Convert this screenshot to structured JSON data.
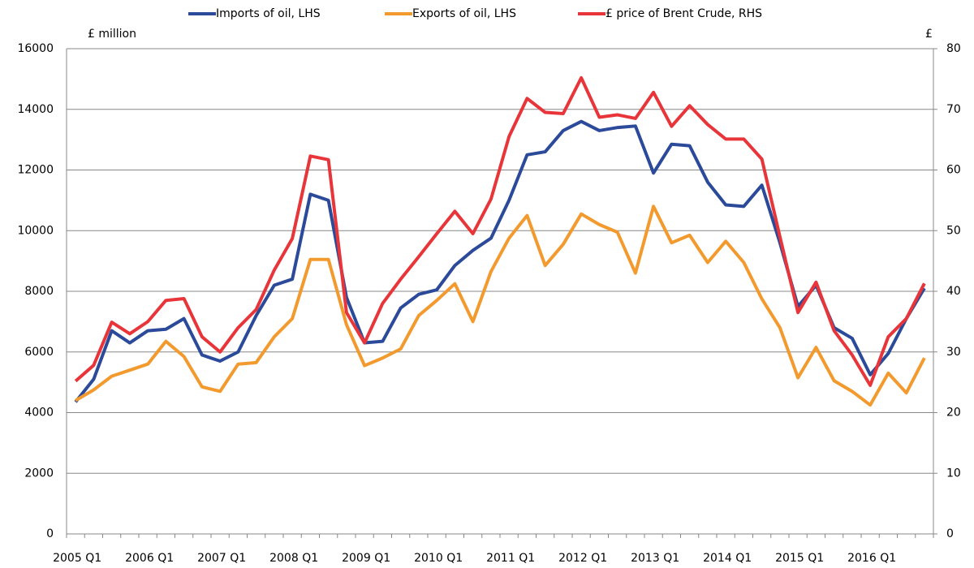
{
  "chart_data": {
    "type": "line",
    "y_unit_label": "£ million",
    "y2_unit_label": "£",
    "categories": [
      "2005 Q1",
      null,
      null,
      null,
      "2006 Q1",
      null,
      null,
      null,
      "2007 Q1",
      null,
      null,
      null,
      "2008 Q1",
      null,
      null,
      null,
      "2009 Q1",
      null,
      null,
      null,
      "2010 Q1",
      null,
      null,
      null,
      "2011 Q1",
      null,
      null,
      null,
      "2012 Q1",
      null,
      null,
      null,
      "2013 Q1",
      null,
      null,
      null,
      "2014 Q1",
      null,
      null,
      null,
      "2015 Q1",
      null,
      null,
      null,
      "2016 Q1",
      null,
      null,
      null
    ],
    "series": [
      {
        "name": "Imports of oil, LHS",
        "color": "#2b4a9a",
        "values": [
          4350,
          5100,
          6700,
          6300,
          6700,
          6750,
          7100,
          5900,
          5700,
          6000,
          7200,
          8200,
          8400,
          11200,
          11000,
          7800,
          6300,
          6350,
          7450,
          7900,
          8050,
          8850,
          9350,
          9750,
          11000,
          12500,
          12600,
          13300,
          13600,
          13300,
          13400,
          13450,
          11900,
          12850,
          12800,
          11600,
          10850,
          10800,
          11500,
          9600,
          7500,
          8200,
          6800,
          6450,
          5250,
          5950,
          7100,
          8100
        ]
      },
      {
        "name": "Exports of oil, LHS",
        "color": "#f39a2e",
        "values": [
          4400,
          4750,
          5200,
          5400,
          5600,
          6350,
          5850,
          4850,
          4700,
          5600,
          5650,
          6500,
          7100,
          9050,
          9050,
          6900,
          5550,
          5800,
          6100,
          7200,
          7700,
          8250,
          7000,
          8650,
          9750,
          10500,
          8850,
          9550,
          10550,
          10200,
          9950,
          8600,
          10800,
          9600,
          9850,
          8950,
          9650,
          8950,
          7750,
          6800,
          5150,
          6150,
          5050,
          4700,
          4250,
          5300,
          4650,
          5800
        ]
      },
      {
        "name": "£ price of Brent Crude, RHS",
        "color": "#e8353a",
        "axis": "y2",
        "values": [
          25.2,
          27.8,
          34.9,
          33.0,
          35.0,
          38.5,
          38.8,
          32.5,
          30.0,
          34.0,
          37.0,
          43.5,
          48.7,
          62.3,
          61.7,
          36.5,
          31.5,
          38.0,
          42.0,
          45.7,
          49.5,
          53.2,
          49.5,
          55.2,
          65.5,
          71.8,
          69.5,
          69.3,
          75.2,
          68.7,
          69.1,
          68.5,
          72.8,
          67.2,
          70.6,
          67.5,
          65.1,
          65.1,
          61.8,
          49.0,
          36.5,
          41.5,
          33.5,
          29.5,
          24.5,
          32.5,
          35.5,
          41.3
        ]
      }
    ],
    "ylim": [
      0,
      16000
    ],
    "yticks": [
      0,
      2000,
      4000,
      6000,
      8000,
      10000,
      12000,
      14000,
      16000
    ],
    "y2lim": [
      0,
      80
    ],
    "y2ticks": [
      0,
      10,
      20,
      30,
      40,
      50,
      60,
      70,
      80
    ],
    "grid": true,
    "legend": "top"
  }
}
